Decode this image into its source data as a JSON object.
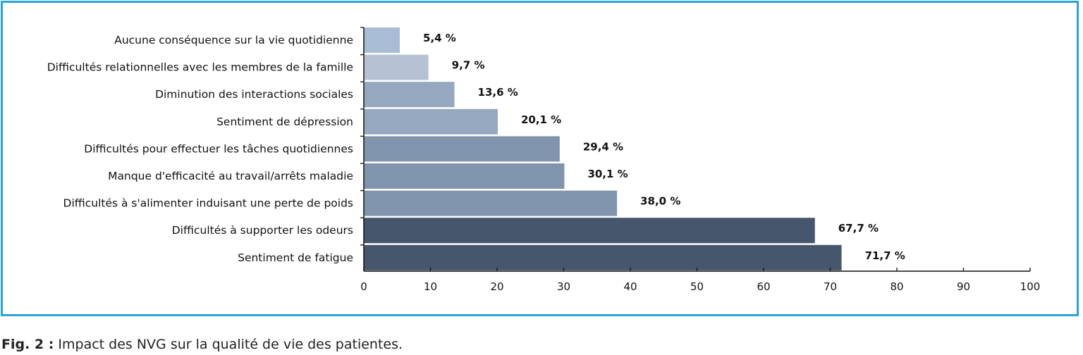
{
  "caption": {
    "prefix": "Fig. 2 :",
    "text": "Impact des NVG sur la qualité de vie des patientes."
  },
  "chart_data": {
    "type": "bar",
    "orientation": "horizontal",
    "categories": [
      "Aucune conséquence sur la vie quotidienne",
      "Difficultés relationnelles avec les membres de la famille",
      "Diminution des interactions sociales",
      "Sentiment de dépression",
      "Difficultés pour effectuer les tâches quotidiennes",
      "Manque d'efficacité au travail/arrêts maladie",
      "Difficultés à s'alimenter induisant une perte de poids",
      "Difficultés à supporter les odeurs",
      "Sentiment de fatigue"
    ],
    "values": [
      5.4,
      9.7,
      13.6,
      20.1,
      29.4,
      30.1,
      38.0,
      67.7,
      71.7
    ],
    "value_labels": [
      "5,4 %",
      "9,7 %",
      "13,6 %",
      "20,1 %",
      "29,4 %",
      "30,1 %",
      "38,0 %",
      "67,7 %",
      "71,7 %"
    ],
    "bar_colors": [
      "#a9bcd6",
      "#b6c2d3",
      "#95a8c0",
      "#95a8c0",
      "#8194ae",
      "#8194ae",
      "#8194ae",
      "#46566c",
      "#46566c"
    ],
    "xlim": [
      0,
      100
    ],
    "xticks": [
      0,
      10,
      20,
      30,
      40,
      50,
      60,
      70,
      80,
      90,
      100
    ],
    "grid": false,
    "title": "",
    "xlabel": "",
    "ylabel": ""
  }
}
